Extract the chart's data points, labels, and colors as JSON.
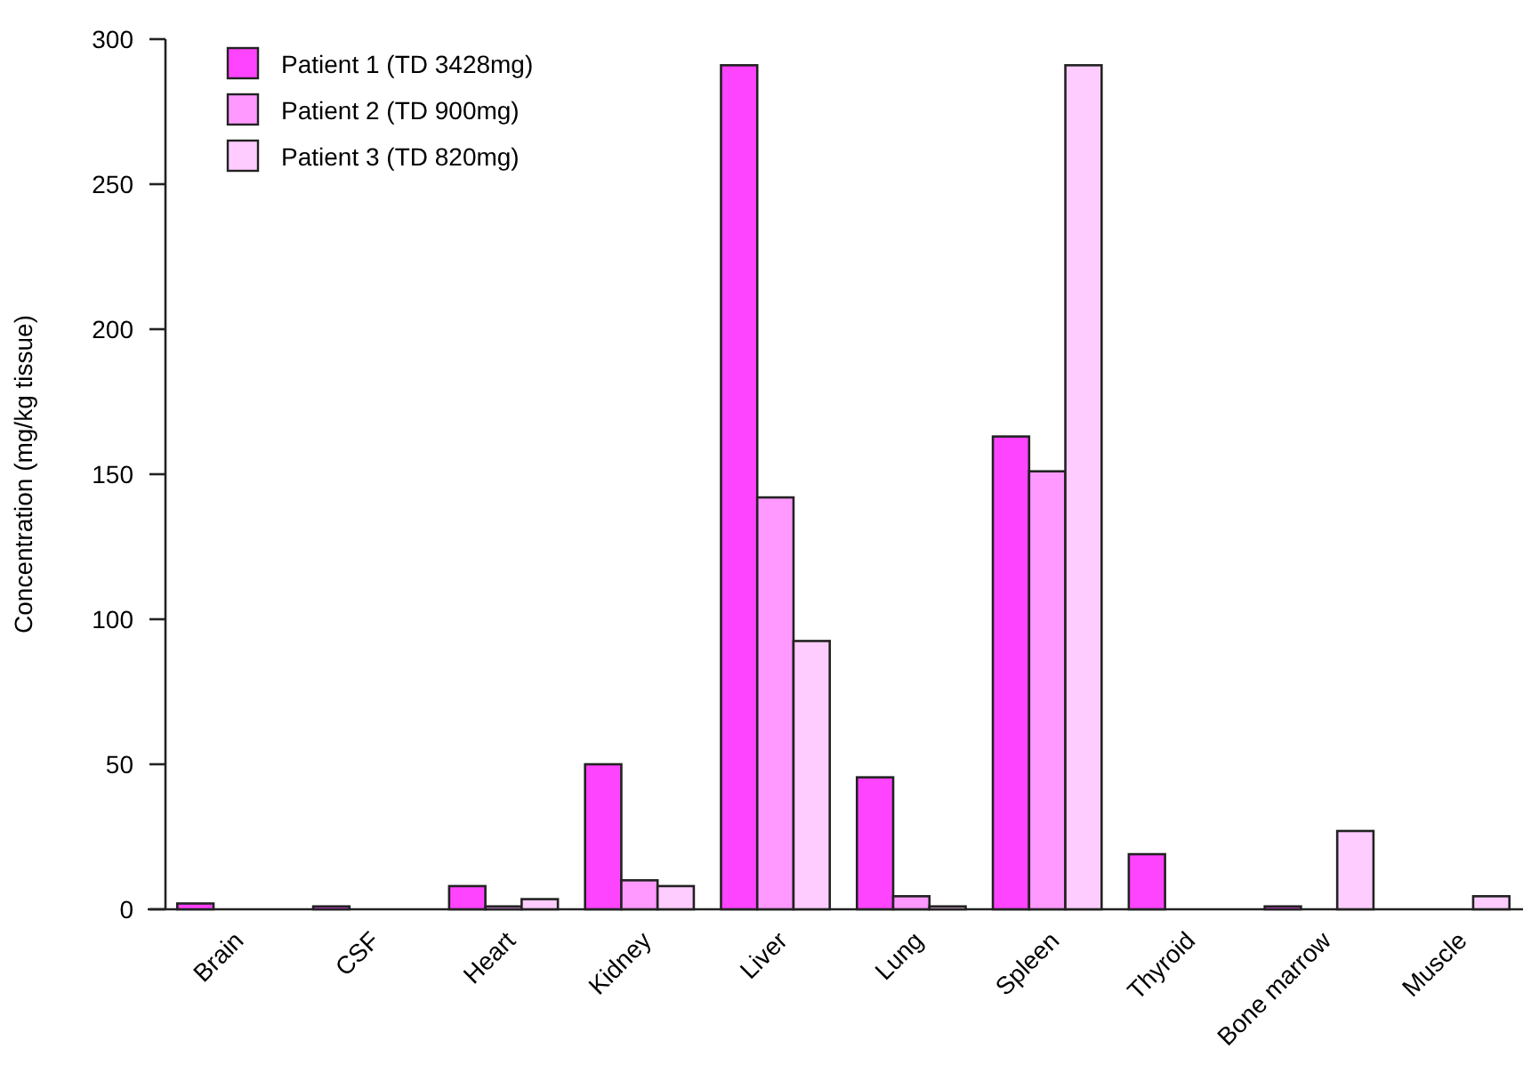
{
  "chart_data": {
    "type": "bar",
    "ylabel": "Concentration (mg/kg tissue)",
    "categories": [
      "Brain",
      "CSF",
      "Heart",
      "Kidney",
      "Liver",
      "Lung",
      "Spleen",
      "Thyroid",
      "Bone marrow",
      "Muscle"
    ],
    "series": [
      {
        "name": "Patient 1 (TD 3428mg)",
        "color": "#ff44ff",
        "values": [
          2,
          1,
          8,
          50,
          291,
          45.5,
          163,
          19,
          1,
          null
        ]
      },
      {
        "name": "Patient 2 (TD 900mg)",
        "color": "#ff99ff",
        "values": [
          null,
          null,
          1,
          10,
          142,
          4.5,
          151,
          null,
          null,
          null
        ]
      },
      {
        "name": "Patient 3 (TD 820mg)",
        "color": "#ffccff",
        "values": [
          null,
          null,
          3.5,
          8,
          92.5,
          1,
          291,
          null,
          27,
          4.5
        ]
      }
    ],
    "ylim": [
      0,
      300
    ],
    "yticks": [
      0,
      50,
      100,
      150,
      200,
      250,
      300
    ],
    "legend": "top left",
    "grid": false
  }
}
